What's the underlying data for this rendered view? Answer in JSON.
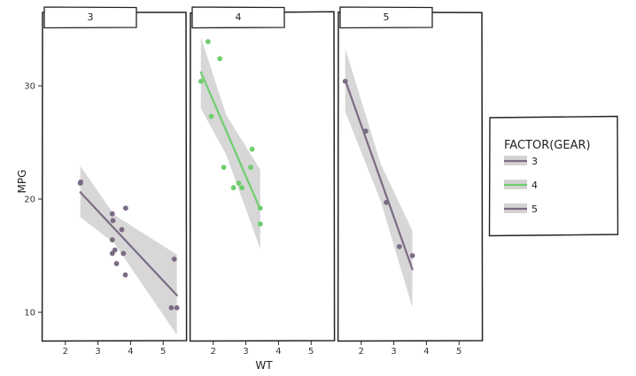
{
  "chart_data": {
    "type": "scatter",
    "title": "",
    "xlabel": "WT",
    "ylabel": "MPG",
    "facet_by": "gear",
    "xlim": [
      1.3,
      5.7
    ],
    "ylim": [
      7.5,
      35.0
    ],
    "x_ticks": [
      2,
      3,
      4,
      5
    ],
    "y_ticks": [
      10,
      20,
      30
    ],
    "grid": false,
    "legend": {
      "title": "FACTOR(GEAR)",
      "position": "right",
      "entries": [
        "3",
        "4",
        "5"
      ]
    },
    "colors": {
      "3": "#7b6b84",
      "4": "#6fce6f",
      "5": "#7b6b84",
      "band": "#d3d3d3"
    },
    "panels": [
      {
        "label": "3",
        "points": [
          [
            2.46,
            21.4
          ],
          [
            3.44,
            18.7
          ],
          [
            3.46,
            18.1
          ],
          [
            3.57,
            14.3
          ],
          [
            3.44,
            16.4
          ],
          [
            3.73,
            17.3
          ],
          [
            3.78,
            15.2
          ],
          [
            5.25,
            10.4
          ],
          [
            5.42,
            10.4
          ],
          [
            5.34,
            14.7
          ],
          [
            2.47,
            21.5
          ],
          [
            3.52,
            15.5
          ],
          [
            3.44,
            15.2
          ],
          [
            3.84,
            13.3
          ],
          [
            3.85,
            19.2
          ]
        ],
        "fit": {
          "x": [
            2.46,
            5.42
          ],
          "y": [
            20.6,
            11.5
          ]
        },
        "band": [
          [
            2.46,
            22.9,
            18.4
          ],
          [
            3.5,
            18.6,
            16.1
          ],
          [
            5.42,
            15.1,
            8.0
          ]
        ]
      },
      {
        "label": "4",
        "points": [
          [
            2.62,
            21.0
          ],
          [
            2.88,
            21.0
          ],
          [
            2.32,
            22.8
          ],
          [
            3.19,
            24.4
          ],
          [
            3.15,
            22.8
          ],
          [
            3.44,
            19.2
          ],
          [
            3.44,
            17.8
          ],
          [
            2.2,
            32.4
          ],
          [
            1.62,
            30.4
          ],
          [
            1.84,
            33.9
          ],
          [
            1.94,
            27.3
          ],
          [
            2.78,
            21.4
          ]
        ],
        "fit": {
          "x": [
            1.62,
            3.44
          ],
          "y": [
            31.2,
            19.1
          ]
        },
        "band": [
          [
            1.62,
            34.3,
            28.0
          ],
          [
            2.4,
            27.4,
            23.9
          ],
          [
            3.44,
            22.6,
            15.6
          ]
        ]
      },
      {
        "label": "5",
        "points": [
          [
            2.14,
            26.0
          ],
          [
            1.51,
            30.4
          ],
          [
            3.17,
            15.8
          ],
          [
            2.77,
            19.7
          ],
          [
            3.57,
            15.0
          ]
        ],
        "fit": {
          "x": [
            1.51,
            3.57
          ],
          "y": [
            30.5,
            13.8
          ]
        },
        "band": [
          [
            1.51,
            33.3,
            27.7
          ],
          [
            2.6,
            23.1,
            19.8
          ],
          [
            3.57,
            17.2,
            10.4
          ]
        ]
      }
    ]
  }
}
